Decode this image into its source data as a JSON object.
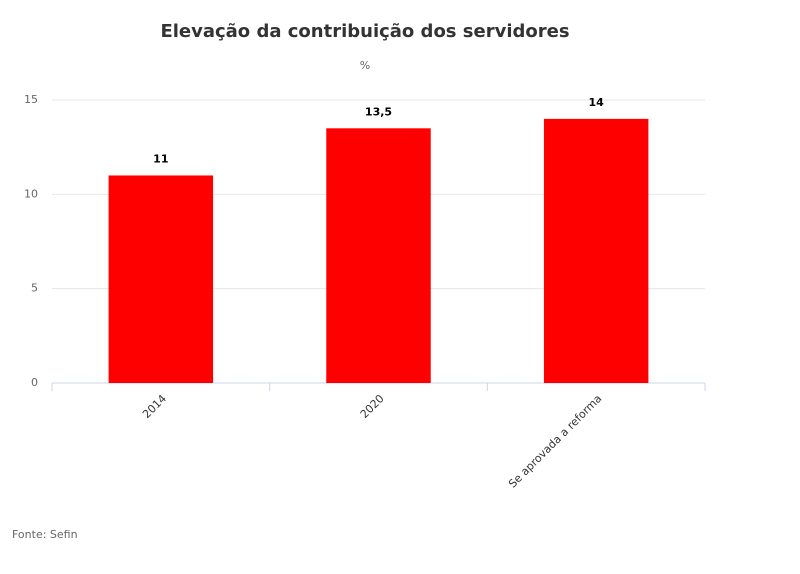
{
  "chart_data": {
    "type": "bar",
    "title": "Elevação da contribuição dos servidores",
    "subtitle": "%",
    "categories": [
      "2014",
      "2020",
      "Se aprovada a reforma"
    ],
    "values": [
      11,
      13.5,
      14
    ],
    "value_labels": [
      "11",
      "13,5",
      "14"
    ],
    "color": "#ff0000",
    "ylim": [
      0,
      15
    ],
    "yticks": [
      0,
      5,
      10,
      15
    ],
    "grid": true,
    "source": "Fonte: Sefin"
  }
}
